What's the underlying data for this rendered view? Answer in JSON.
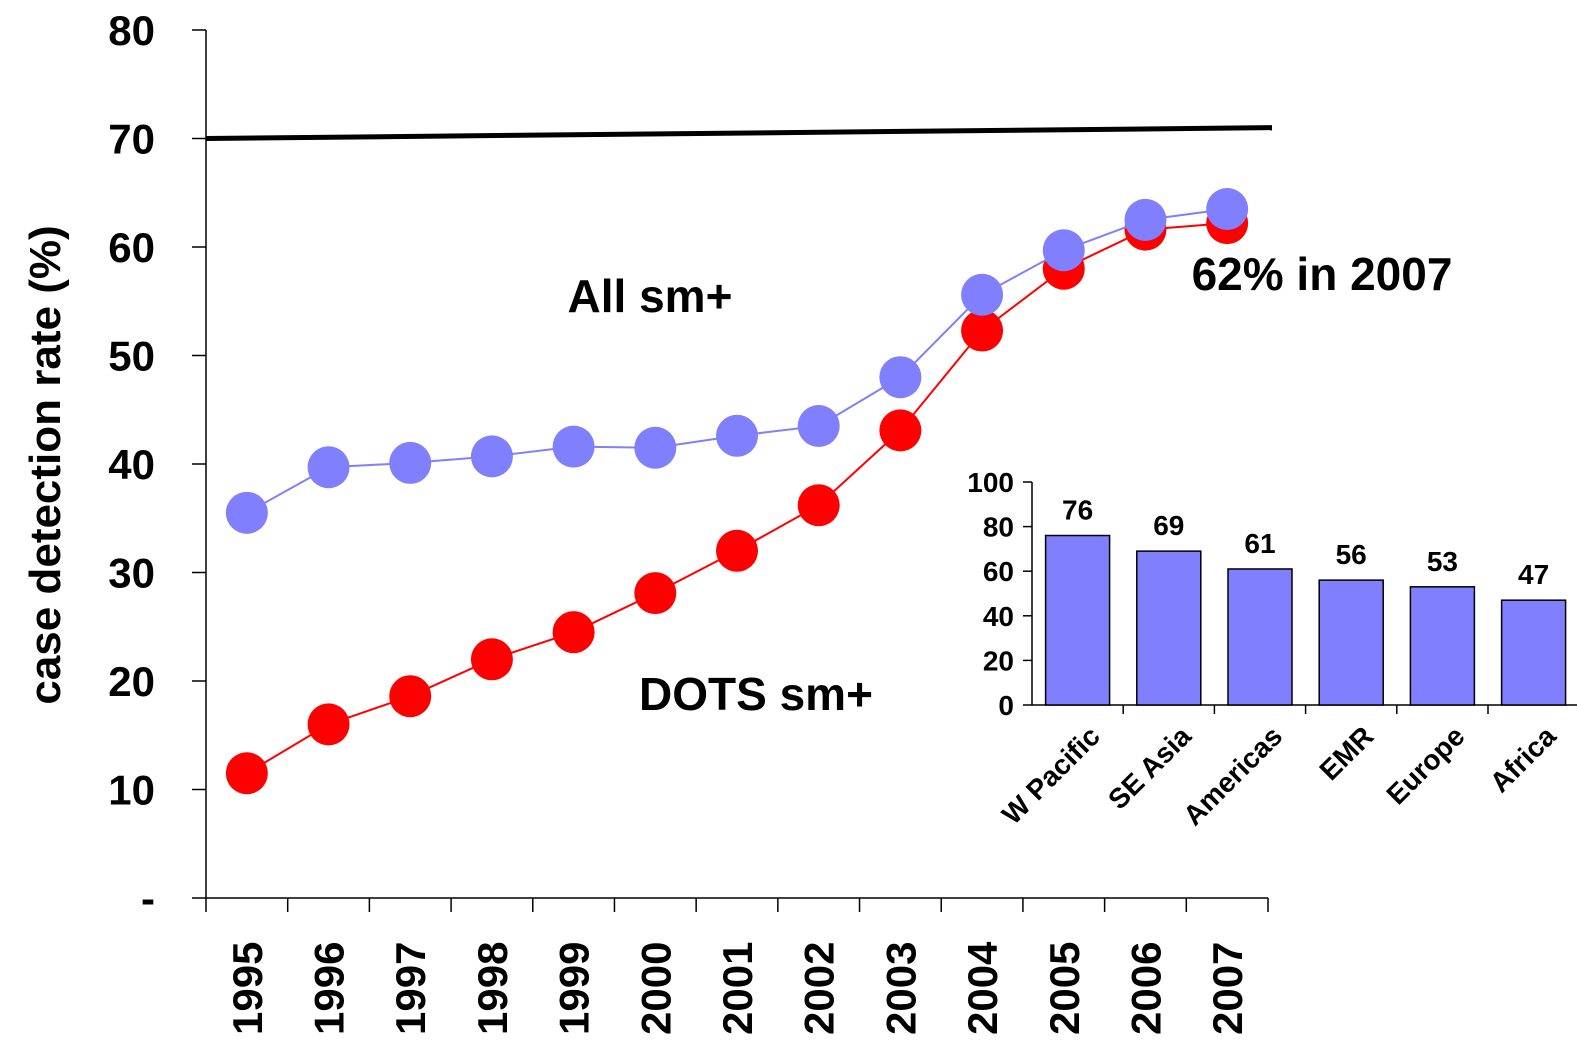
{
  "chart_data": [
    {
      "type": "line",
      "title": "",
      "ylabel": "case detection rate (%)",
      "xlabel": "",
      "ylim": [
        0,
        80
      ],
      "y_ticks": [
        0,
        10,
        20,
        30,
        40,
        50,
        60,
        70,
        80
      ],
      "y_tick_labels": [
        "-",
        "10",
        "20",
        "30",
        "40",
        "50",
        "60",
        "70",
        "80"
      ],
      "categories": [
        "1995",
        "1996",
        "1997",
        "1998",
        "1999",
        "2000",
        "2001",
        "2002",
        "2003",
        "2004",
        "2005",
        "2006",
        "2007"
      ],
      "grid": false,
      "target_line": {
        "value": 70,
        "end_value": 71,
        "color": "#000000"
      },
      "series": [
        {
          "name": "All sm+",
          "color": "#8080ff",
          "values": [
            35.5,
            39.7,
            40.1,
            40.7,
            41.6,
            41.5,
            42.6,
            43.5,
            48,
            55.6,
            59.7,
            62.5,
            63.5
          ]
        },
        {
          "name": "DOTS sm+",
          "color": "#ff0000",
          "values": [
            11.5,
            16,
            18.6,
            22,
            24.5,
            28.1,
            32,
            36.2,
            43.1,
            52.3,
            58,
            61.6,
            62.2
          ]
        }
      ],
      "annotations": [
        "62% in 2007"
      ]
    },
    {
      "type": "bar",
      "title": "",
      "categories": [
        "W Pacific",
        "SE Asia",
        "Americas",
        "EMR",
        "Europe",
        "Africa"
      ],
      "values": [
        76,
        69,
        61,
        56,
        53,
        47
      ],
      "ylim": [
        0,
        100
      ],
      "y_ticks": [
        0,
        20,
        40,
        60,
        80,
        100
      ],
      "bar_color": "#8080ff",
      "data_labels": true
    }
  ]
}
